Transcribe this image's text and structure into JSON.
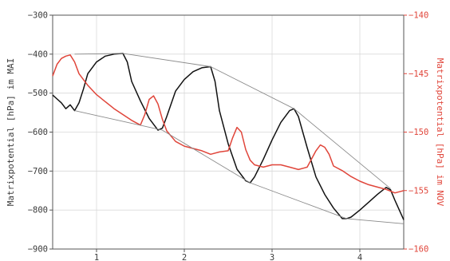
{
  "chart_data": {
    "type": "line",
    "title": "",
    "xlabel": "",
    "ylabel_left": "Matrixpotential [hPa] im MAI",
    "ylabel_right": "Matrixpotential [hPa] im NOV",
    "xlim": [
      0.5,
      4.5
    ],
    "ylim_left": [
      -900,
      -300
    ],
    "ylim_right": [
      -160,
      -140
    ],
    "x_ticks": [
      1,
      2,
      3,
      4
    ],
    "y_ticks_left": [
      -900,
      -800,
      -700,
      -600,
      -500,
      -400,
      -300
    ],
    "y_ticks_right": [
      -160,
      -155,
      -150,
      -145,
      -140
    ],
    "grid": true,
    "colors": {
      "mai": "#111111",
      "nov": "#e0453a",
      "envelope": "#8a8a8a",
      "grid": "#d9d9d9",
      "axes": "#555555"
    },
    "series": [
      {
        "axis": "left",
        "color": "#111111",
        "x": [
          0.5,
          0.55,
          0.6,
          0.65,
          0.7,
          0.75,
          0.8,
          0.85,
          0.9,
          1.0,
          1.1,
          1.2,
          1.3,
          1.35,
          1.4,
          1.5,
          1.6,
          1.7,
          1.75,
          1.8,
          1.9,
          2.0,
          2.1,
          2.2,
          2.3,
          2.35,
          2.4,
          2.5,
          2.6,
          2.7,
          2.75,
          2.8,
          2.9,
          3.0,
          3.1,
          3.2,
          3.25,
          3.3,
          3.4,
          3.5,
          3.6,
          3.7,
          3.8,
          3.85,
          3.9,
          4.0,
          4.1,
          4.2,
          4.3,
          4.35,
          4.4,
          4.5
        ],
        "y": [
          -505,
          -515,
          -525,
          -540,
          -530,
          -545,
          -525,
          -490,
          -450,
          -420,
          -405,
          -400,
          -398,
          -420,
          -470,
          -520,
          -565,
          -595,
          -590,
          -560,
          -495,
          -465,
          -445,
          -435,
          -432,
          -470,
          -545,
          -630,
          -695,
          -725,
          -730,
          -715,
          -670,
          -620,
          -575,
          -545,
          -540,
          -560,
          -640,
          -715,
          -760,
          -795,
          -822,
          -822,
          -818,
          -800,
          -780,
          -760,
          -742,
          -748,
          -775,
          -825
        ]
      },
      {
        "axis": "right",
        "color": "#e0453a",
        "x": [
          0.5,
          0.55,
          0.6,
          0.65,
          0.7,
          0.75,
          0.8,
          0.9,
          1.0,
          1.1,
          1.2,
          1.3,
          1.4,
          1.5,
          1.55,
          1.6,
          1.65,
          1.7,
          1.75,
          1.8,
          1.9,
          2.0,
          2.1,
          2.2,
          2.3,
          2.4,
          2.5,
          2.55,
          2.6,
          2.65,
          2.7,
          2.75,
          2.8,
          2.9,
          3.0,
          3.1,
          3.2,
          3.3,
          3.4,
          3.5,
          3.55,
          3.6,
          3.65,
          3.7,
          3.8,
          3.9,
          4.0,
          4.1,
          4.2,
          4.3,
          4.4,
          4.5
        ],
        "y": [
          -145.2,
          -144.2,
          -143.7,
          -143.5,
          -143.4,
          -144.0,
          -145.0,
          -146.0,
          -146.8,
          -147.4,
          -148.0,
          -148.5,
          -149.0,
          -149.4,
          -148.5,
          -147.2,
          -146.9,
          -147.6,
          -148.9,
          -149.9,
          -150.8,
          -151.2,
          -151.4,
          -151.6,
          -151.9,
          -151.7,
          -151.6,
          -150.5,
          -149.6,
          -150.0,
          -151.5,
          -152.4,
          -152.8,
          -153.0,
          -152.8,
          -152.8,
          -153.0,
          -153.2,
          -153.0,
          -151.6,
          -151.1,
          -151.3,
          -151.9,
          -152.9,
          -153.3,
          -153.8,
          -154.2,
          -154.5,
          -154.7,
          -154.9,
          -155.2,
          -155.0
        ]
      },
      {
        "axis": "left",
        "color": "#8a8a8a",
        "x": [
          0.75,
          1.3,
          2.3,
          3.25,
          4.35
        ],
        "y": [
          -400,
          -398,
          -432,
          -540,
          -745
        ]
      },
      {
        "axis": "left",
        "color": "#8a8a8a",
        "x": [
          0.75,
          1.75,
          2.75,
          3.85,
          4.5
        ],
        "y": [
          -545,
          -595,
          -730,
          -822,
          -835
        ]
      }
    ]
  }
}
